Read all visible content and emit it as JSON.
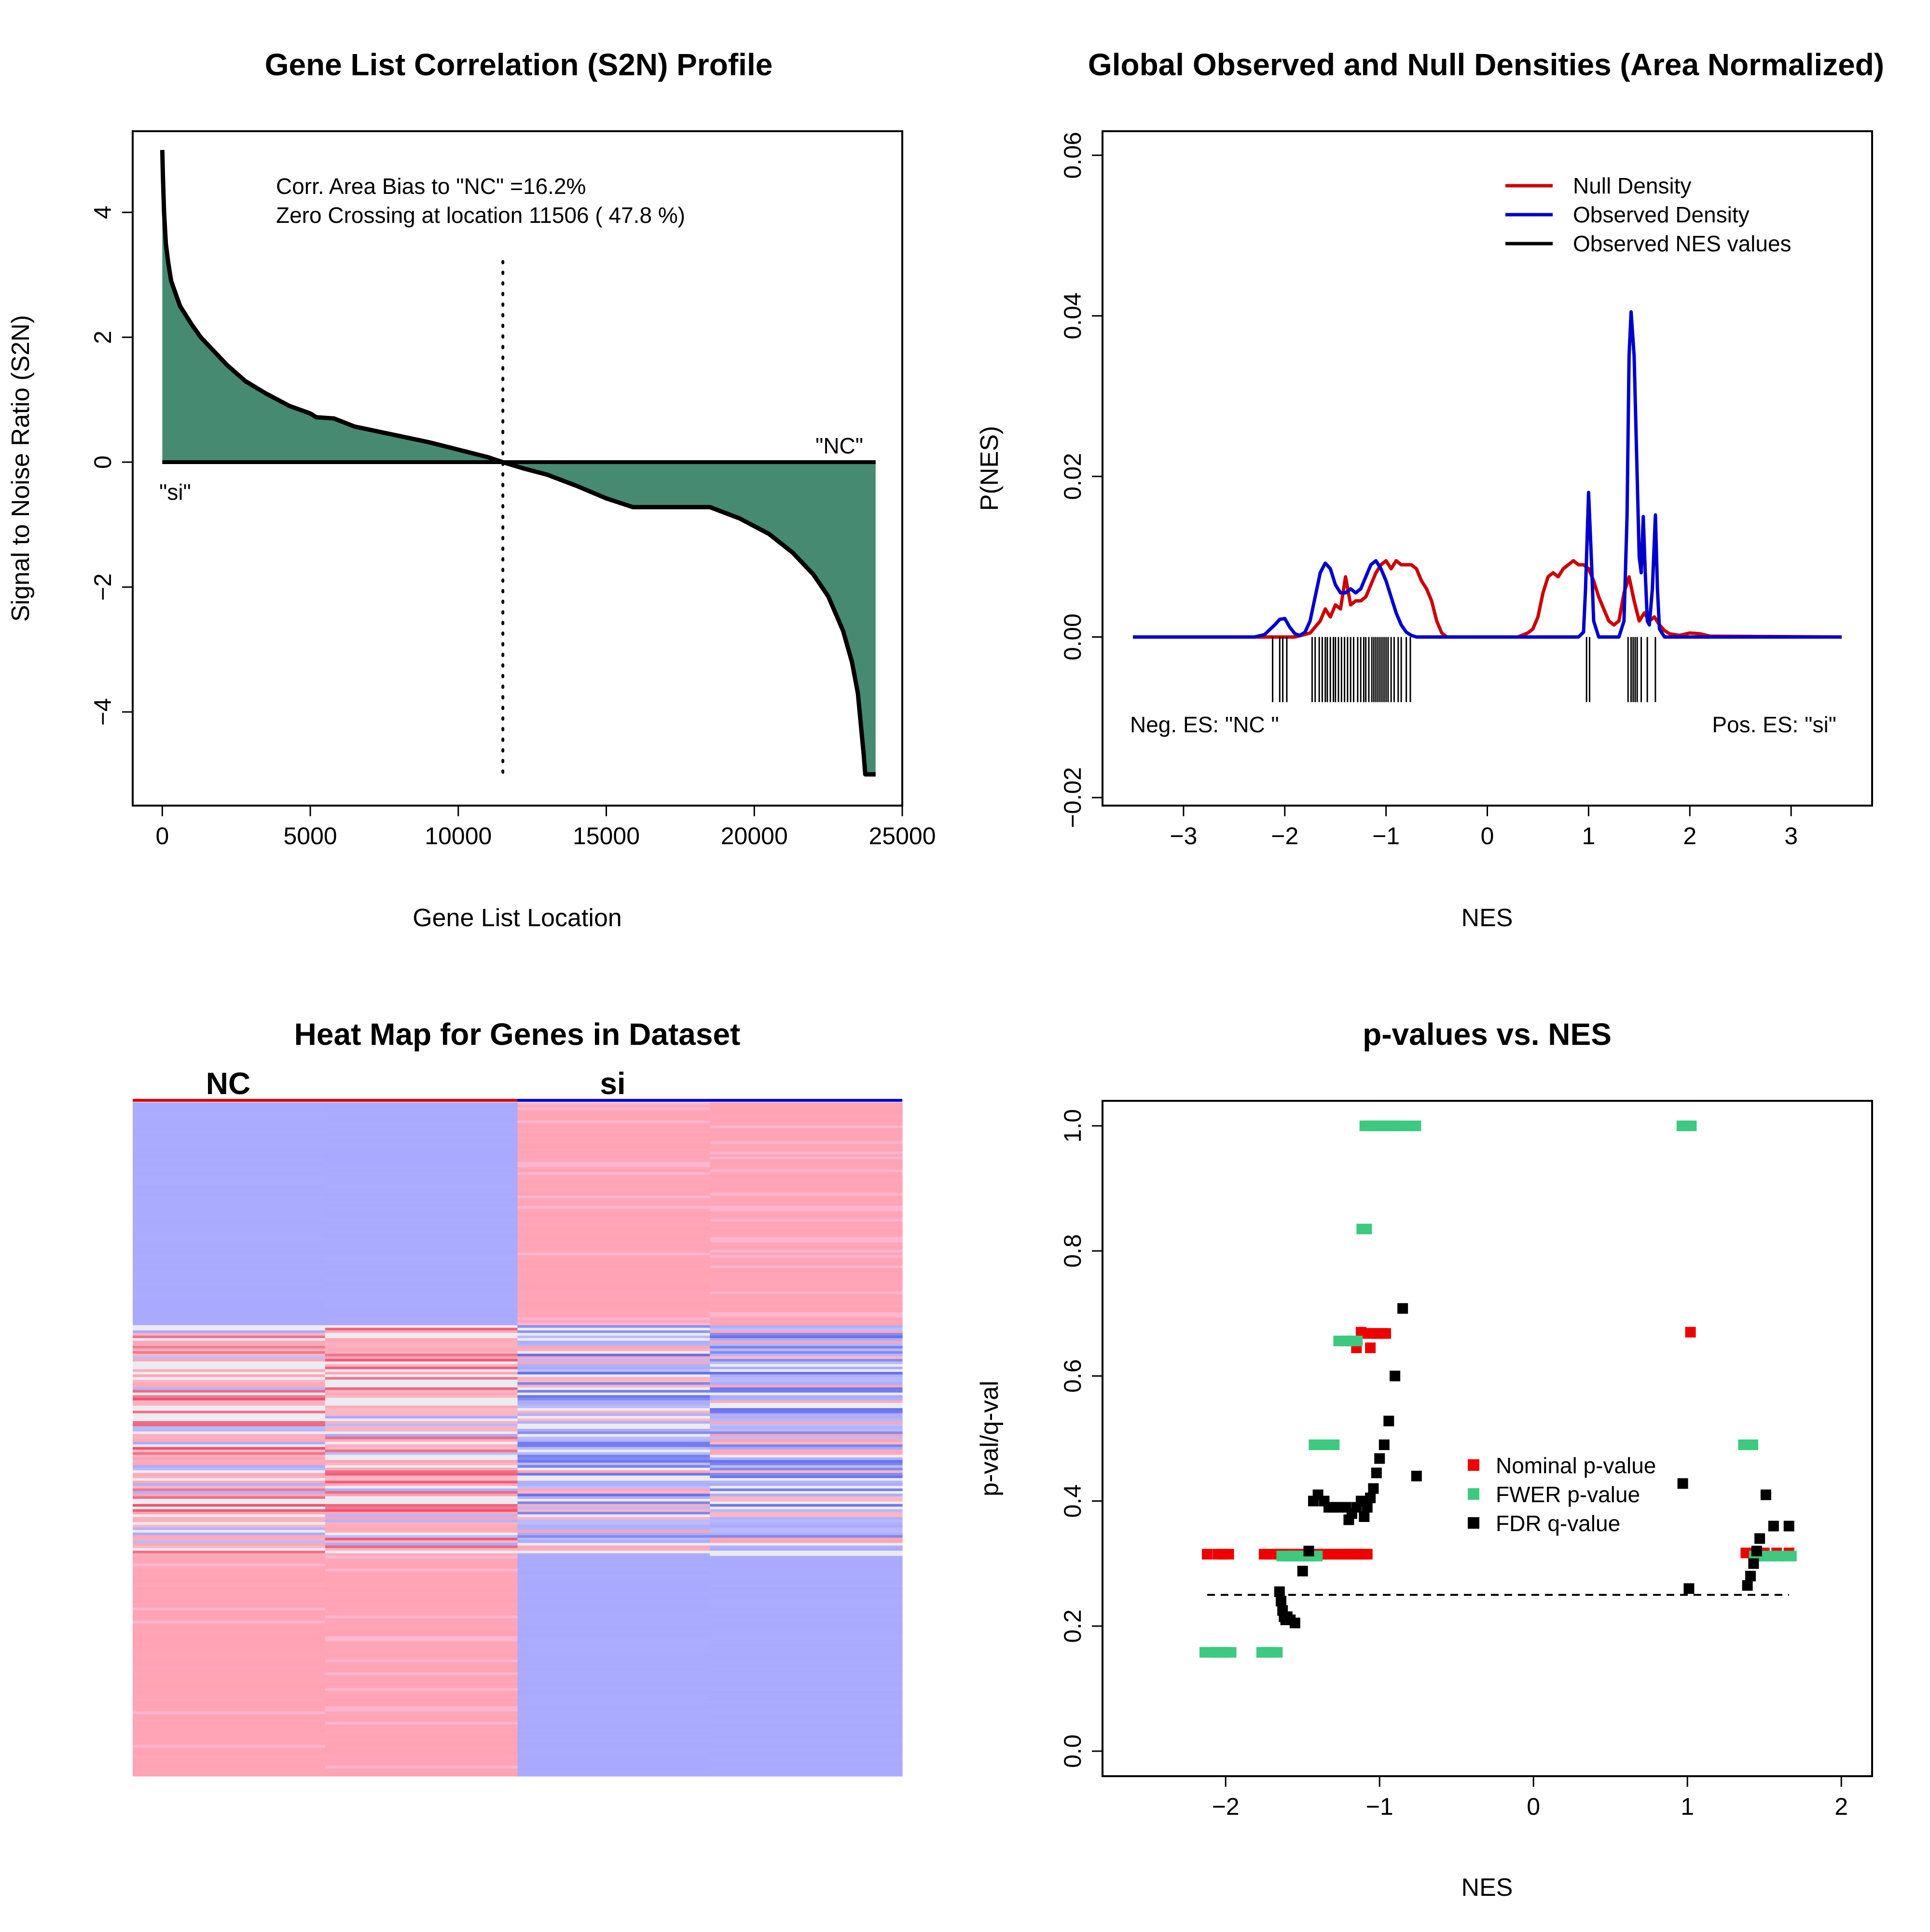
{
  "colors": {
    "area_fill": "#468b71",
    "null_density": "#cc0000",
    "observed_density": "#0000cc",
    "nominal": "#ee0000",
    "fwer": "#3dc97f",
    "fdr": "#000000",
    "heat_blue": "#a9aaff",
    "heat_pink": "#ffa3b4"
  },
  "chart_data": [
    {
      "type": "area",
      "title": "Gene List Correlation (S2N) Profile",
      "xlabel": "Gene List Location",
      "ylabel": "Signal to Noise Ratio (S2N)",
      "xlim": [
        -1000,
        25000
      ],
      "ylim": [
        -5.5,
        5.3
      ],
      "xticks": [
        0,
        5000,
        10000,
        15000,
        20000,
        25000
      ],
      "yticks": [
        -4,
        -2,
        0,
        2,
        4
      ],
      "x": [
        0,
        20,
        60,
        120,
        200,
        300,
        450,
        600,
        800,
        1000,
        1300,
        1700,
        2200,
        2800,
        3500,
        4300,
        5000,
        5200,
        5800,
        6500,
        7200,
        8000,
        9000,
        10000,
        11000,
        11506,
        12200,
        13000,
        14000,
        15000,
        15900,
        16500,
        17500,
        18500,
        19500,
        20500,
        21300,
        22000,
        22500,
        23000,
        23300,
        23500,
        23600,
        23700,
        23750,
        23800,
        24100
      ],
      "y": [
        5.0,
        4.6,
        4.0,
        3.5,
        3.2,
        2.9,
        2.7,
        2.5,
        2.35,
        2.2,
        2.0,
        1.8,
        1.55,
        1.3,
        1.1,
        0.9,
        0.78,
        0.72,
        0.7,
        0.57,
        0.5,
        0.42,
        0.32,
        0.2,
        0.08,
        0.0,
        -0.1,
        -0.2,
        -0.38,
        -0.58,
        -0.72,
        -0.72,
        -0.72,
        -0.72,
        -0.9,
        -1.15,
        -1.45,
        -1.8,
        -2.15,
        -2.7,
        -3.2,
        -3.7,
        -4.2,
        -4.7,
        -5.0,
        -5.0,
        -5.0
      ],
      "annotations": [
        "Corr. Area Bias to \"NC\" =16.2%",
        "Zero Crossing at location  11506  ( 47.8  %)",
        "\"NC\"",
        "\"si\""
      ],
      "zero_crossing": 11506
    },
    {
      "type": "line",
      "title": "Global Observed and Null Densities (Area Normalized)",
      "xlabel": "NES",
      "ylabel": "P(NES)",
      "xlim": [
        -3.8,
        3.8
      ],
      "ylim": [
        -0.021,
        0.063
      ],
      "xticks": [
        -3,
        -2,
        -1,
        0,
        1,
        2,
        3
      ],
      "yticks": [
        -0.02,
        0.0,
        0.02,
        0.04,
        0.06
      ],
      "legend_position": "top-right",
      "series": [
        {
          "name": "Null Density",
          "x": [
            -3.5,
            -1.9,
            -1.75,
            -1.65,
            -1.6,
            -1.55,
            -1.5,
            -1.45,
            -1.4,
            -1.35,
            -1.3,
            -1.25,
            -1.2,
            -1.15,
            -1.1,
            -1.05,
            -1.0,
            -0.95,
            -0.9,
            -0.85,
            -0.8,
            -0.75,
            -0.7,
            -0.65,
            -0.6,
            -0.55,
            -0.5,
            -0.45,
            -0.4,
            -0.3,
            0.3,
            0.4,
            0.45,
            0.5,
            0.55,
            0.6,
            0.65,
            0.7,
            0.75,
            0.8,
            0.85,
            0.9,
            0.95,
            1.0,
            1.05,
            1.1,
            1.15,
            1.2,
            1.25,
            1.3,
            1.35,
            1.4,
            1.45,
            1.5,
            1.55,
            1.6,
            1.65,
            1.7,
            1.75,
            1.8,
            1.9,
            2.0,
            2.1,
            2.2,
            3.5
          ],
          "y": [
            0.0,
            0.0,
            0.0005,
            0.002,
            0.0035,
            0.0025,
            0.004,
            0.0035,
            0.0075,
            0.004,
            0.0045,
            0.0045,
            0.005,
            0.0065,
            0.008,
            0.009,
            0.0095,
            0.0085,
            0.0095,
            0.009,
            0.009,
            0.009,
            0.0085,
            0.007,
            0.006,
            0.0045,
            0.002,
            0.0005,
            0.0,
            0.0,
            0.0,
            0.0005,
            0.001,
            0.0025,
            0.0055,
            0.0075,
            0.008,
            0.0075,
            0.0085,
            0.009,
            0.0095,
            0.009,
            0.009,
            0.0085,
            0.007,
            0.005,
            0.0035,
            0.002,
            0.0015,
            0.002,
            0.0055,
            0.0075,
            0.0045,
            0.002,
            0.003,
            0.002,
            0.0025,
            0.0015,
            0.0008,
            0.0004,
            0.0002,
            0.0005,
            0.0004,
            0.0001,
            0.0
          ]
        },
        {
          "name": "Observed Density",
          "x": [
            -3.5,
            -2.3,
            -2.2,
            -2.1,
            -2.05,
            -2.0,
            -1.95,
            -1.9,
            -1.85,
            -1.8,
            -1.75,
            -1.7,
            -1.65,
            -1.6,
            -1.55,
            -1.5,
            -1.45,
            -1.4,
            -1.35,
            -1.3,
            -1.25,
            -1.2,
            -1.15,
            -1.1,
            -1.05,
            -1.0,
            -0.95,
            -0.9,
            -0.85,
            -0.8,
            -0.75,
            -0.7,
            -0.6,
            0.9,
            0.95,
            0.97,
            1.0,
            1.03,
            1.05,
            1.1,
            1.3,
            1.35,
            1.38,
            1.4,
            1.42,
            1.45,
            1.48,
            1.5,
            1.52,
            1.54,
            1.56,
            1.58,
            1.6,
            1.63,
            1.66,
            1.68,
            1.7,
            1.75,
            3.5
          ],
          "y": [
            0.0,
            0.0,
            0.0003,
            0.0015,
            0.0022,
            0.0023,
            0.0012,
            0.0004,
            0.0002,
            0.0006,
            0.002,
            0.005,
            0.008,
            0.0092,
            0.0085,
            0.0065,
            0.0055,
            0.0055,
            0.006,
            0.0055,
            0.006,
            0.0075,
            0.009,
            0.0095,
            0.0085,
            0.007,
            0.005,
            0.003,
            0.0015,
            0.0006,
            0.0002,
            0.0,
            0.0,
            0.0,
            0.0006,
            0.006,
            0.018,
            0.009,
            0.002,
            0.0,
            0.0,
            0.002,
            0.015,
            0.035,
            0.0405,
            0.035,
            0.02,
            0.01,
            0.008,
            0.015,
            0.008,
            0.002,
            0.0015,
            0.006,
            0.0152,
            0.006,
            0.001,
            0.0,
            0.0
          ]
        }
      ],
      "observed_nes": [
        -2.12,
        -2.05,
        -2.02,
        -1.98,
        -1.73,
        -1.7,
        -1.66,
        -1.63,
        -1.6,
        -1.58,
        -1.55,
        -1.52,
        -1.5,
        -1.47,
        -1.44,
        -1.41,
        -1.38,
        -1.35,
        -1.32,
        -1.28,
        -1.25,
        -1.22,
        -1.2,
        -1.17,
        -1.14,
        -1.12,
        -1.1,
        -1.08,
        -1.06,
        -1.04,
        -1.02,
        -1.0,
        -0.98,
        -0.95,
        -0.92,
        -0.88,
        -0.85,
        -0.8,
        -0.76,
        0.98,
        1.01,
        1.39,
        1.42,
        1.44,
        1.46,
        1.48,
        1.52,
        1.58,
        1.66
      ],
      "annotations": [
        "Neg. ES: \"NC \"",
        "Pos. ES: \"si\""
      ],
      "legend": [
        "Null Density",
        "Observed Density",
        "Observed NES values"
      ]
    },
    {
      "type": "heatmap",
      "title": "Heat Map for Genes in Dataset",
      "columns": [
        "NC",
        "NC",
        "si",
        "si"
      ],
      "group_labels": [
        "NC",
        "si"
      ]
    },
    {
      "type": "scatter",
      "title": "p-values vs. NES",
      "xlabel": "NES",
      "ylabel": "p-val/q-val",
      "xlim": [
        -2.8,
        2.2
      ],
      "ylim": [
        -0.04,
        1.04
      ],
      "xticks": [
        -2,
        -1,
        0,
        1,
        2
      ],
      "yticks": [
        0.0,
        0.2,
        0.4,
        0.6,
        0.8,
        1.0
      ],
      "threshold": 0.25,
      "legend_position": "center-right",
      "series": [
        {
          "name": "Nominal p-value",
          "x": [
            -2.12,
            -2.05,
            -2.02,
            -1.98,
            -1.75,
            -1.72,
            -1.68,
            -1.65,
            -1.62,
            -1.6,
            -1.57,
            -1.55,
            -1.52,
            -1.5,
            -1.47,
            -1.44,
            -1.41,
            -1.38,
            -1.35,
            -1.32,
            -1.28,
            -1.25,
            -1.22,
            -1.2,
            -1.17,
            -1.14,
            -1.12,
            -1.1,
            -1.08,
            -1.15,
            -1.12,
            -1.1,
            -1.06,
            -1.04,
            -1.02,
            -1.0,
            -0.98,
            -0.96,
            -1.06,
            1.02,
            1.38,
            1.42,
            1.45,
            1.5,
            1.58,
            1.66
          ],
          "y": [
            0.315,
            0.315,
            0.315,
            0.315,
            0.315,
            0.315,
            0.315,
            0.315,
            0.315,
            0.315,
            0.315,
            0.315,
            0.315,
            0.315,
            0.315,
            0.315,
            0.315,
            0.315,
            0.315,
            0.315,
            0.315,
            0.315,
            0.315,
            0.315,
            0.315,
            0.315,
            0.315,
            0.315,
            0.315,
            0.645,
            0.67,
            0.668,
            0.668,
            0.668,
            0.668,
            0.668,
            0.668,
            0.668,
            0.645,
            0.67,
            0.317,
            0.317,
            0.317,
            0.317,
            0.317,
            0.317
          ]
        },
        {
          "name": "FWER p-value",
          "x": [
            -2.12,
            -2.05,
            -2.02,
            -1.98,
            -1.75,
            -1.72,
            -1.68,
            -1.62,
            -1.6,
            -1.57,
            -1.54,
            -1.51,
            -1.48,
            -1.45,
            -1.42,
            -1.41,
            -1.37,
            -1.34,
            -1.31,
            -1.25,
            -1.21,
            -1.19,
            -1.16,
            -1.1,
            -1.08,
            -1.06,
            -1.03,
            -1.0,
            -0.97,
            -0.94,
            -0.91,
            -0.88,
            -0.78,
            0.98,
            1.01,
            1.38,
            1.41,
            1.45,
            1.48,
            1.52,
            1.58,
            1.66
          ],
          "y": [
            0.158,
            0.158,
            0.158,
            0.158,
            0.158,
            0.158,
            0.158,
            0.312,
            0.312,
            0.312,
            0.312,
            0.312,
            0.312,
            0.312,
            0.312,
            0.49,
            0.49,
            0.49,
            0.49,
            0.656,
            0.656,
            0.656,
            0.656,
            0.835,
            1.0,
            1.0,
            1.0,
            1.0,
            1.0,
            1.0,
            1.0,
            1.0,
            1.0,
            1.0,
            1.0,
            0.49,
            0.49,
            0.312,
            0.312,
            0.312,
            0.312,
            0.312
          ]
        },
        {
          "name": "FDR q-value",
          "x": [
            -1.65,
            -1.64,
            -1.63,
            -1.62,
            -1.61,
            -1.6,
            -1.58,
            -1.55,
            -1.5,
            -1.46,
            -1.43,
            -1.4,
            -1.36,
            -1.33,
            -1.3,
            -1.26,
            -1.22,
            -1.2,
            -1.18,
            -1.15,
            -1.12,
            -1.1,
            -1.08,
            -1.06,
            -1.04,
            -1.02,
            -1.0,
            -0.97,
            -0.94,
            -0.9,
            -0.85,
            -0.76,
            0.97,
            1.01,
            1.39,
            1.41,
            1.43,
            1.45,
            1.47,
            1.51,
            1.56,
            1.66
          ],
          "y": [
            0.255,
            0.24,
            0.225,
            0.215,
            0.21,
            0.215,
            0.21,
            0.205,
            0.288,
            0.32,
            0.4,
            0.41,
            0.4,
            0.39,
            0.39,
            0.39,
            0.39,
            0.37,
            0.38,
            0.39,
            0.4,
            0.375,
            0.39,
            0.405,
            0.42,
            0.445,
            0.468,
            0.49,
            0.528,
            0.6,
            0.708,
            0.44,
            0.428,
            0.26,
            0.265,
            0.28,
            0.3,
            0.32,
            0.34,
            0.41,
            0.36,
            0.36
          ]
        }
      ],
      "legend": [
        "Nominal p-value",
        "FWER p-value",
        "FDR q-value"
      ]
    }
  ]
}
